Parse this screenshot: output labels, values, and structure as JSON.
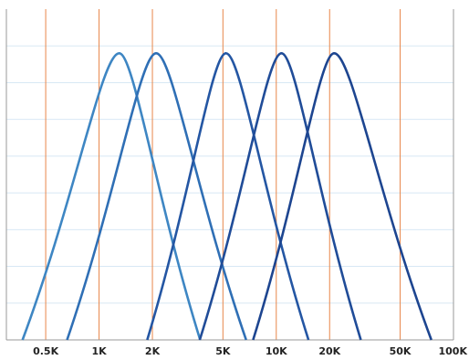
{
  "chart_data": {
    "type": "line",
    "title": "",
    "xlabel": "",
    "ylabel": "",
    "x_scale": "log",
    "xlim": [
      300,
      100000
    ],
    "ylim": [
      0,
      9
    ],
    "grid": true,
    "legend": "none",
    "x_ticks": [
      {
        "value": 500,
        "label": "0.5K"
      },
      {
        "value": 1000,
        "label": "1K"
      },
      {
        "value": 2000,
        "label": "2K"
      },
      {
        "value": 5000,
        "label": "5K"
      },
      {
        "value": 10000,
        "label": "10K"
      },
      {
        "value": 20000,
        "label": "20K"
      },
      {
        "value": 50000,
        "label": "50K"
      },
      {
        "value": 100000,
        "label": "100K"
      }
    ],
    "y_gridlines": [
      1,
      2,
      3,
      4,
      5,
      6,
      7,
      8
    ],
    "series": [
      {
        "x": [
          370,
          1300,
          3720
        ],
        "y": [
          0,
          7.8,
          0
        ],
        "color": "#3e86c3"
      },
      {
        "x": [
          660,
          2100,
          6760
        ],
        "y": [
          0,
          7.8,
          0
        ],
        "color": "#2f6fb5"
      },
      {
        "x": [
          1870,
          5200,
          15200
        ],
        "y": [
          0,
          7.8,
          0
        ],
        "color": "#2456a3"
      },
      {
        "x": [
          3700,
          10700,
          30000
        ],
        "y": [
          0,
          7.8,
          0
        ],
        "color": "#204c98"
      },
      {
        "x": [
          7400,
          21200,
          75000
        ],
        "y": [
          0,
          7.8,
          0
        ],
        "color": "#1d4590"
      }
    ],
    "colors": {
      "vertical_grid": "#e8864a",
      "horizontal_grid": "#d8e8f4",
      "axis": "#999999"
    }
  }
}
